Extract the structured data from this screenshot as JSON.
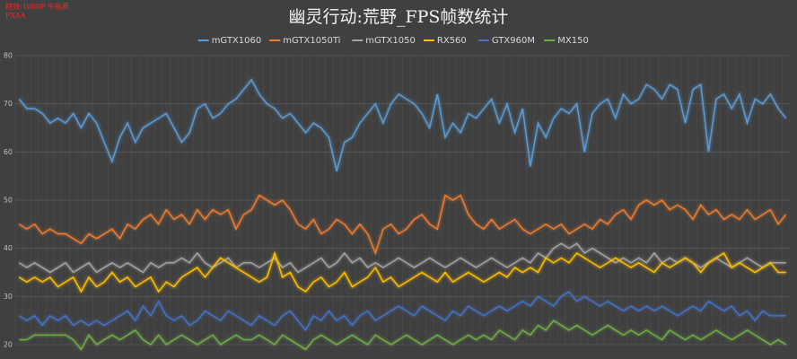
{
  "chart_data": {
    "type": "line",
    "title": "幽灵行动:荒野_FPS帧数统计",
    "annotations": [
      "特效:1080P  中画质",
      "FXAA"
    ],
    "ylim": [
      20,
      80
    ],
    "yticks": [
      20,
      30,
      40,
      50,
      60,
      70,
      80
    ],
    "grid": true,
    "series": [
      {
        "name": "mGTX1060",
        "color": "#5b9bd5",
        "values": [
          71,
          69,
          69,
          68,
          66,
          67,
          66,
          68,
          65,
          68,
          66,
          62,
          58,
          63,
          66,
          62,
          65,
          66,
          67,
          68,
          65,
          62,
          64,
          69,
          70,
          67,
          68,
          70,
          71,
          73,
          75,
          72,
          70,
          69,
          67,
          68,
          66,
          64,
          66,
          65,
          63,
          56,
          62,
          63,
          66,
          68,
          70,
          66,
          70,
          72,
          71,
          70,
          68,
          65,
          72,
          63,
          66,
          64,
          68,
          67,
          69,
          71,
          66,
          70,
          64,
          69,
          57,
          66,
          63,
          67,
          69,
          68,
          70,
          60,
          68,
          70,
          71,
          67,
          72,
          70,
          71,
          74,
          73,
          71,
          74,
          73,
          66,
          73,
          74,
          60,
          71,
          72,
          69,
          72,
          66,
          71,
          70,
          72,
          69,
          67
        ]
      },
      {
        "name": "mGTX1050Ti",
        "color": "#ed7d31",
        "values": [
          45,
          44,
          45,
          43,
          44,
          43,
          43,
          42,
          41,
          43,
          42,
          43,
          44,
          42,
          45,
          44,
          46,
          47,
          45,
          48,
          46,
          47,
          45,
          48,
          46,
          48,
          47,
          48,
          44,
          47,
          48,
          51,
          50,
          49,
          50,
          48,
          45,
          44,
          46,
          43,
          44,
          46,
          45,
          43,
          45,
          43,
          39,
          44,
          45,
          43,
          44,
          46,
          47,
          45,
          44,
          51,
          50,
          51,
          47,
          45,
          44,
          46,
          44,
          45,
          46,
          44,
          43,
          44,
          45,
          44,
          45,
          43,
          44,
          45,
          44,
          46,
          45,
          47,
          48,
          46,
          49,
          50,
          49,
          50,
          48,
          49,
          48,
          46,
          49,
          47,
          48,
          46,
          47,
          46,
          48,
          46,
          47,
          48,
          45,
          47
        ]
      },
      {
        "name": "mGTX1050",
        "color": "#a5a5a5",
        "values": [
          37,
          36,
          37,
          36,
          35,
          36,
          37,
          35,
          36,
          37,
          35,
          36,
          37,
          36,
          37,
          36,
          35,
          37,
          36,
          37,
          37,
          38,
          37,
          39,
          37,
          36,
          37,
          38,
          36,
          37,
          37,
          36,
          37,
          38,
          36,
          37,
          35,
          36,
          37,
          38,
          36,
          37,
          39,
          37,
          38,
          36,
          37,
          36,
          37,
          38,
          37,
          36,
          37,
          38,
          37,
          36,
          37,
          38,
          37,
          36,
          37,
          38,
          37,
          36,
          37,
          38,
          37,
          39,
          38,
          40,
          41,
          40,
          41,
          39,
          40,
          39,
          38,
          37,
          38,
          37,
          38,
          37,
          39,
          37,
          38,
          37,
          38,
          37,
          36,
          37,
          38,
          37,
          36,
          37,
          38,
          37,
          36,
          37,
          37,
          37
        ]
      },
      {
        "name": "RX560",
        "color": "#ffc000",
        "values": [
          34,
          33,
          34,
          33,
          34,
          32,
          33,
          34,
          31,
          34,
          32,
          33,
          35,
          33,
          34,
          32,
          33,
          34,
          31,
          33,
          32,
          34,
          35,
          36,
          34,
          36,
          38,
          37,
          36,
          35,
          34,
          33,
          34,
          39,
          34,
          35,
          32,
          31,
          33,
          34,
          32,
          33,
          35,
          32,
          33,
          34,
          36,
          33,
          34,
          32,
          33,
          34,
          35,
          34,
          33,
          35,
          33,
          34,
          35,
          34,
          33,
          34,
          35,
          34,
          36,
          35,
          36,
          35,
          38,
          37,
          38,
          37,
          39,
          38,
          37,
          36,
          37,
          38,
          37,
          36,
          37,
          36,
          35,
          37,
          36,
          37,
          38,
          37,
          35,
          37,
          38,
          39,
          36,
          37,
          36,
          35,
          36,
          37,
          35,
          35
        ]
      },
      {
        "name": "GTX960M",
        "color": "#4472c4",
        "values": [
          26,
          25,
          26,
          24,
          26,
          25,
          26,
          24,
          25,
          24,
          25,
          24,
          25,
          26,
          27,
          25,
          28,
          26,
          29,
          26,
          25,
          26,
          24,
          25,
          27,
          26,
          25,
          27,
          26,
          25,
          24,
          26,
          25,
          24,
          26,
          27,
          25,
          23,
          26,
          25,
          27,
          25,
          26,
          24,
          26,
          27,
          25,
          26,
          27,
          28,
          27,
          26,
          28,
          27,
          26,
          25,
          27,
          26,
          28,
          27,
          26,
          27,
          28,
          27,
          28,
          29,
          28,
          30,
          29,
          28,
          30,
          31,
          29,
          30,
          29,
          28,
          29,
          28,
          27,
          28,
          27,
          28,
          27,
          28,
          27,
          26,
          27,
          28,
          27,
          29,
          28,
          27,
          28,
          26,
          27,
          25,
          27,
          26,
          26,
          26
        ]
      },
      {
        "name": "MX150",
        "color": "#70ad47",
        "values": [
          21,
          21,
          22,
          22,
          22,
          22,
          22,
          21,
          19,
          22,
          20,
          21,
          22,
          21,
          22,
          23,
          21,
          20,
          22,
          20,
          21,
          22,
          21,
          20,
          21,
          22,
          20,
          21,
          22,
          21,
          21,
          22,
          21,
          20,
          22,
          21,
          20,
          19,
          21,
          22,
          21,
          20,
          21,
          22,
          21,
          20,
          22,
          21,
          20,
          21,
          22,
          21,
          20,
          21,
          22,
          21,
          20,
          21,
          22,
          21,
          22,
          21,
          23,
          22,
          21,
          23,
          22,
          24,
          23,
          25,
          24,
          23,
          24,
          23,
          22,
          23,
          24,
          23,
          22,
          23,
          22,
          23,
          22,
          21,
          23,
          22,
          21,
          22,
          21,
          22,
          23,
          22,
          21,
          22,
          23,
          22,
          21,
          20,
          21,
          20
        ]
      }
    ]
  }
}
